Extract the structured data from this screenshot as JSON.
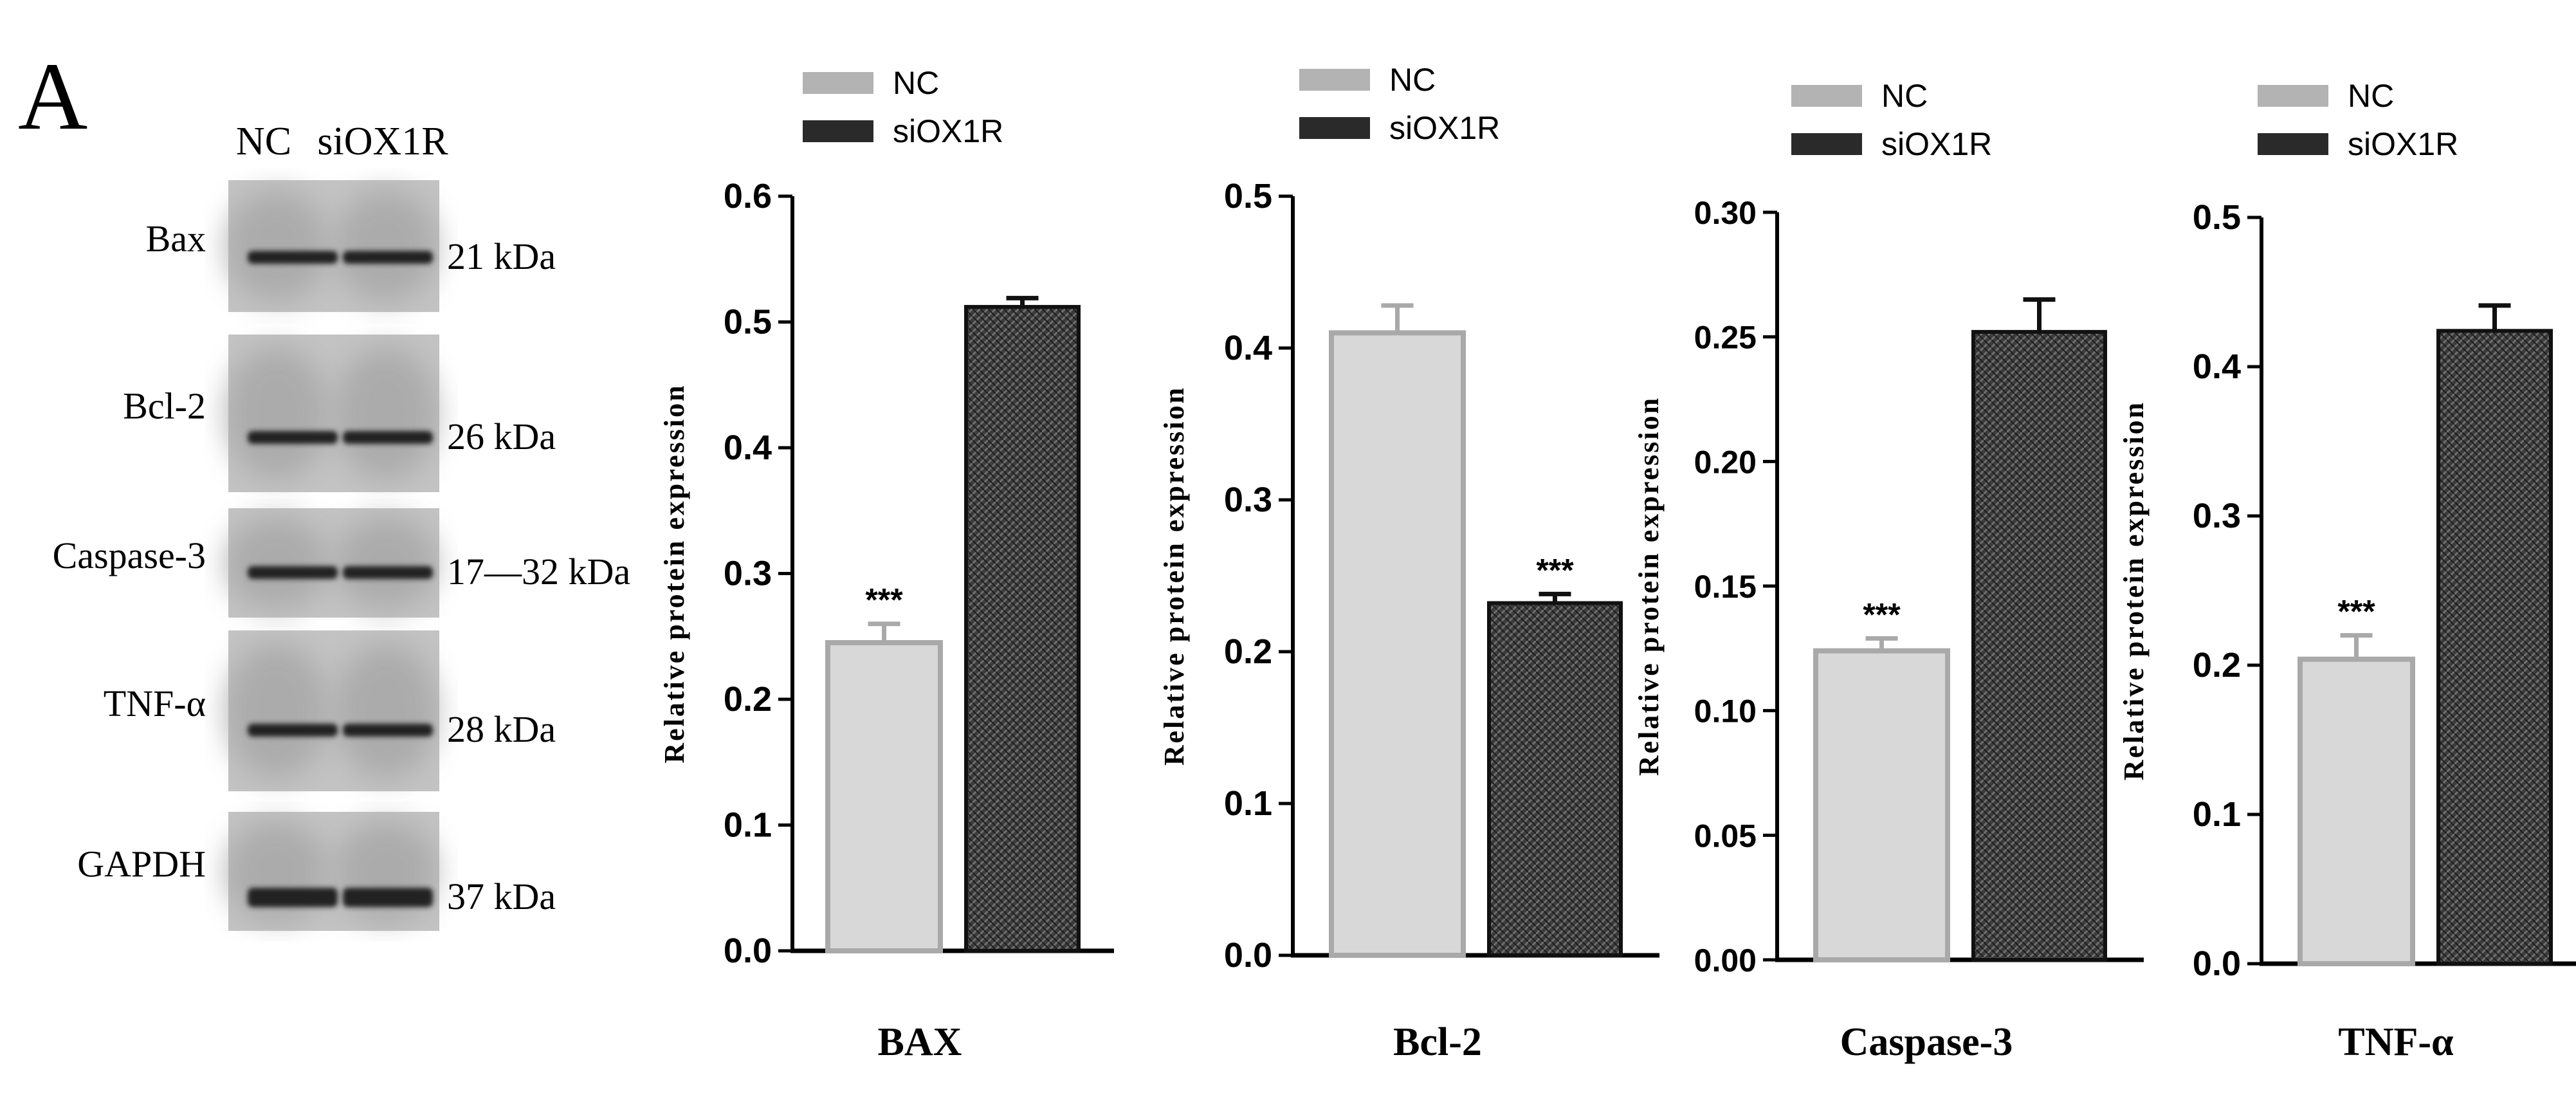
{
  "panel_letter": "A",
  "blot": {
    "lane_labels": [
      "NC",
      "siOX1R"
    ],
    "rows": [
      {
        "protein": "Bax",
        "size": "21 kDa"
      },
      {
        "protein": "Bcl-2",
        "size": "26 kDa"
      },
      {
        "protein": "Caspase-3",
        "size": "17—32 kDa"
      },
      {
        "protein": "TNF-α",
        "size": "28 kDa"
      },
      {
        "protein": "GAPDH",
        "size": "37 kDa"
      }
    ]
  },
  "colors": {
    "nc_fill": "#d8d8d8",
    "nc_stroke": "#a9a9a9",
    "si_fill": "#3c3c3c",
    "si_stroke": "#111111",
    "axis": "#000000"
  },
  "chart_data": [
    {
      "type": "bar",
      "title": "BAX",
      "xlabel": "BAX",
      "ylabel": "Relative protein expression",
      "categories": [
        "NC",
        "siOX1R"
      ],
      "values": [
        0.245,
        0.512
      ],
      "errors": [
        0.015,
        0.007
      ],
      "significance": [
        "***",
        ""
      ],
      "ylim": [
        0,
        0.6
      ],
      "yticks": [
        0.0,
        0.1,
        0.2,
        0.3,
        0.4,
        0.5,
        0.6
      ],
      "ytick_labels": [
        "0.0",
        "0.1",
        "0.2",
        "0.3",
        "0.4",
        "0.5",
        "0.6"
      ],
      "legend": [
        "NC",
        "siOX1R"
      ],
      "legend_position": "top"
    },
    {
      "type": "bar",
      "title": "Bcl-2",
      "xlabel": "Bcl-2",
      "ylabel": "Relative protein expression",
      "categories": [
        "NC",
        "siOX1R"
      ],
      "values": [
        0.41,
        0.232
      ],
      "errors": [
        0.018,
        0.006
      ],
      "significance": [
        "",
        "***"
      ],
      "ylim": [
        0,
        0.5
      ],
      "yticks": [
        0.0,
        0.1,
        0.2,
        0.3,
        0.4,
        0.5
      ],
      "ytick_labels": [
        "0.0",
        "0.1",
        "0.2",
        "0.3",
        "0.4",
        "0.5"
      ],
      "legend": [
        "NC",
        "siOX1R"
      ],
      "legend_position": "top"
    },
    {
      "type": "bar",
      "title": "Caspase-3",
      "xlabel": "Caspase-3",
      "ylabel": "Relative protein expression",
      "categories": [
        "NC",
        "siOX1R"
      ],
      "values": [
        0.124,
        0.252
      ],
      "errors": [
        0.005,
        0.013
      ],
      "significance": [
        "***",
        ""
      ],
      "ylim": [
        0,
        0.3
      ],
      "yticks": [
        0.0,
        0.05,
        0.1,
        0.15,
        0.2,
        0.25,
        0.3
      ],
      "ytick_labels": [
        "0.00",
        "0.05",
        "0.10",
        "0.15",
        "0.20",
        "0.25",
        "0.30"
      ],
      "legend": [
        "NC",
        "siOX1R"
      ],
      "legend_position": "top"
    },
    {
      "type": "bar",
      "title": "TNF-α",
      "xlabel": "TNF-α",
      "ylabel": "Relative protein expression",
      "categories": [
        "NC",
        "siOX1R"
      ],
      "values": [
        0.204,
        0.424
      ],
      "errors": [
        0.016,
        0.017
      ],
      "significance": [
        "***",
        ""
      ],
      "ylim": [
        0,
        0.5
      ],
      "yticks": [
        0.0,
        0.1,
        0.2,
        0.3,
        0.4,
        0.5
      ],
      "ytick_labels": [
        "0.0",
        "0.1",
        "0.2",
        "0.3",
        "0.4",
        "0.5"
      ],
      "legend": [
        "NC",
        "siOX1R"
      ],
      "legend_position": "top"
    }
  ]
}
